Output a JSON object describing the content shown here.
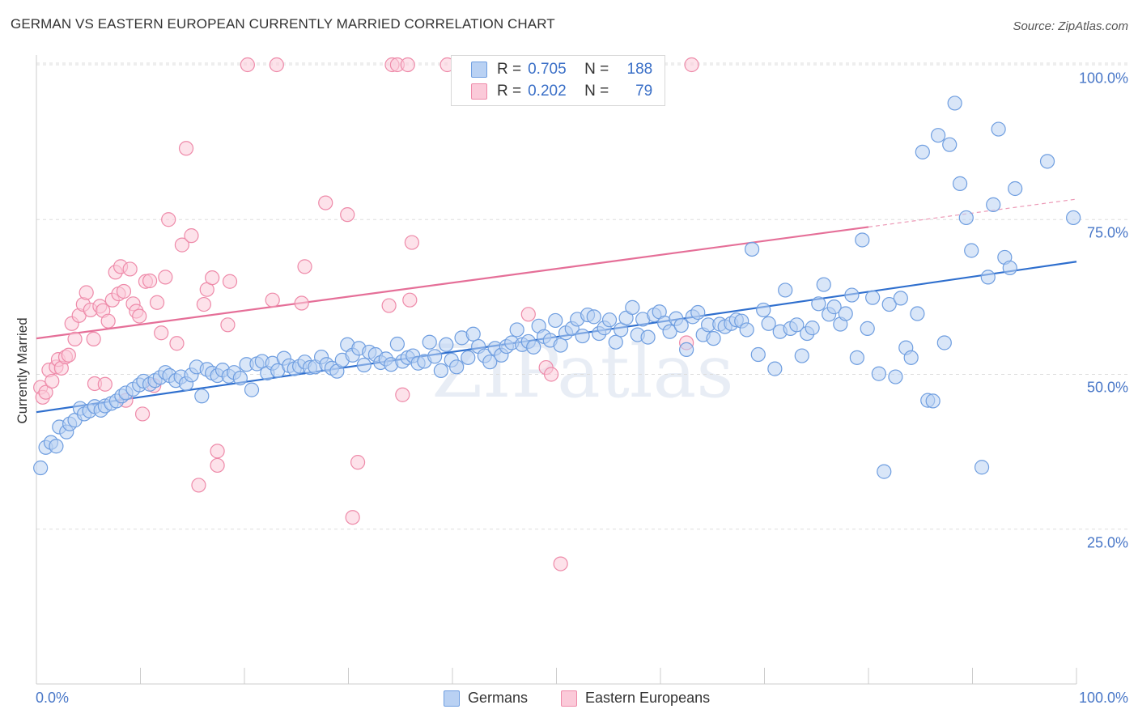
{
  "header": {
    "title": "GERMAN VS EASTERN EUROPEAN CURRENTLY MARRIED CORRELATION CHART",
    "source": "Source: ZipAtlas.com"
  },
  "watermark": "ZIPatlas",
  "stats": {
    "germans": {
      "r_label": "R =",
      "r_value": "0.705",
      "n_label": "N =",
      "n_value": "188"
    },
    "eastern": {
      "r_label": "R =",
      "r_value": "0.202",
      "n_label": "N =",
      "n_value": "79"
    }
  },
  "legend": {
    "germans": "Germans",
    "eastern": "Eastern Europeans"
  },
  "colors": {
    "blue": "#6f9ee0",
    "blue_fill": "#b9d1f3",
    "blue_line": "#2f6fce",
    "pink": "#ee8aa9",
    "pink_fill": "#fbcad9",
    "pink_line": "#e56f98",
    "tick_text": "#4a78c8"
  },
  "chart_data": {
    "type": "scatter",
    "xlabel": "",
    "ylabel": "Currently Married",
    "xlim": [
      0,
      100
    ],
    "ylim": [
      0,
      104
    ],
    "x_tick_labels": [
      "0.0%",
      "100.0%"
    ],
    "y_ticks": [
      25,
      50,
      75,
      100
    ],
    "y_tick_labels": [
      "25.0%",
      "50.0%",
      "75.0%",
      "100.0%"
    ],
    "grid": true,
    "legend_position": "bottom-center",
    "series": [
      {
        "name": "Germans",
        "trend": {
          "x": [
            0,
            100
          ],
          "y": [
            43.9,
            68.2
          ]
        },
        "points": [
          [
            0.4,
            34.9
          ],
          [
            0.9,
            38.2
          ],
          [
            1.4,
            39.0
          ],
          [
            1.9,
            38.4
          ],
          [
            2.2,
            41.5
          ],
          [
            2.9,
            40.7
          ],
          [
            3.2,
            42.0
          ],
          [
            3.7,
            42.6
          ],
          [
            4.2,
            44.5
          ],
          [
            4.6,
            43.6
          ],
          [
            5.1,
            44.1
          ],
          [
            5.6,
            44.8
          ],
          [
            6.2,
            44.2
          ],
          [
            6.6,
            44.9
          ],
          [
            7.2,
            45.3
          ],
          [
            7.7,
            45.7
          ],
          [
            8.2,
            46.5
          ],
          [
            8.6,
            47.0
          ],
          [
            9.3,
            47.6
          ],
          [
            9.9,
            48.3
          ],
          [
            10.3,
            48.9
          ],
          [
            10.9,
            48.4
          ],
          [
            11.4,
            49.0
          ],
          [
            11.9,
            49.5
          ],
          [
            12.4,
            50.3
          ],
          [
            12.8,
            49.8
          ],
          [
            13.4,
            49.0
          ],
          [
            13.9,
            49.6
          ],
          [
            14.4,
            48.5
          ],
          [
            14.9,
            49.9
          ],
          [
            15.4,
            51.2
          ],
          [
            15.9,
            46.5
          ],
          [
            16.4,
            50.8
          ],
          [
            16.9,
            50.2
          ],
          [
            17.4,
            49.8
          ],
          [
            17.9,
            50.7
          ],
          [
            18.5,
            49.7
          ],
          [
            19.0,
            50.3
          ],
          [
            19.6,
            49.4
          ],
          [
            20.2,
            51.6
          ],
          [
            20.7,
            47.5
          ],
          [
            21.2,
            51.7
          ],
          [
            21.7,
            52.1
          ],
          [
            22.2,
            50.2
          ],
          [
            22.7,
            51.8
          ],
          [
            23.2,
            50.6
          ],
          [
            23.8,
            52.6
          ],
          [
            24.3,
            51.4
          ],
          [
            24.8,
            50.9
          ],
          [
            25.3,
            51.3
          ],
          [
            25.8,
            52.0
          ],
          [
            26.3,
            51.1
          ],
          [
            26.8,
            51.2
          ],
          [
            27.4,
            52.8
          ],
          [
            27.9,
            51.6
          ],
          [
            28.4,
            51.0
          ],
          [
            28.9,
            50.5
          ],
          [
            29.4,
            52.3
          ],
          [
            29.9,
            54.8
          ],
          [
            30.4,
            53.1
          ],
          [
            31.0,
            54.2
          ],
          [
            31.5,
            51.5
          ],
          [
            32.0,
            53.6
          ],
          [
            32.6,
            53.2
          ],
          [
            33.1,
            51.9
          ],
          [
            33.6,
            52.5
          ],
          [
            34.1,
            51.6
          ],
          [
            34.7,
            54.9
          ],
          [
            35.2,
            52.1
          ],
          [
            35.7,
            52.7
          ],
          [
            36.2,
            53.0
          ],
          [
            36.7,
            51.8
          ],
          [
            37.3,
            52.1
          ],
          [
            37.8,
            55.2
          ],
          [
            38.3,
            52.9
          ],
          [
            38.9,
            50.6
          ],
          [
            39.4,
            54.8
          ],
          [
            39.9,
            52.3
          ],
          [
            40.4,
            51.2
          ],
          [
            40.9,
            55.9
          ],
          [
            41.5,
            52.7
          ],
          [
            42.0,
            56.5
          ],
          [
            42.5,
            54.5
          ],
          [
            43.1,
            53.0
          ],
          [
            43.6,
            52.0
          ],
          [
            44.1,
            54.2
          ],
          [
            44.7,
            53.1
          ],
          [
            45.2,
            54.5
          ],
          [
            45.7,
            55.1
          ],
          [
            46.2,
            57.2
          ],
          [
            46.7,
            54.8
          ],
          [
            47.3,
            55.3
          ],
          [
            47.8,
            54.4
          ],
          [
            48.3,
            57.8
          ],
          [
            48.8,
            56.1
          ],
          [
            49.4,
            55.5
          ],
          [
            49.9,
            58.7
          ],
          [
            50.4,
            54.7
          ],
          [
            50.9,
            56.7
          ],
          [
            51.5,
            57.4
          ],
          [
            52.0,
            58.9
          ],
          [
            52.5,
            56.2
          ],
          [
            53.0,
            59.6
          ],
          [
            53.6,
            59.3
          ],
          [
            54.1,
            56.6
          ],
          [
            54.6,
            57.5
          ],
          [
            55.1,
            58.8
          ],
          [
            55.7,
            55.2
          ],
          [
            56.2,
            57.2
          ],
          [
            56.7,
            59.1
          ],
          [
            57.3,
            60.8
          ],
          [
            57.8,
            56.4
          ],
          [
            58.3,
            58.9
          ],
          [
            58.8,
            56.0
          ],
          [
            59.4,
            59.6
          ],
          [
            59.9,
            60.1
          ],
          [
            60.4,
            58.3
          ],
          [
            60.9,
            56.9
          ],
          [
            61.5,
            59.0
          ],
          [
            62.0,
            57.9
          ],
          [
            62.5,
            54.0
          ],
          [
            63.1,
            59.3
          ],
          [
            63.6,
            60.0
          ],
          [
            64.1,
            56.4
          ],
          [
            64.6,
            58.0
          ],
          [
            65.1,
            55.8
          ],
          [
            65.7,
            58.1
          ],
          [
            66.2,
            57.7
          ],
          [
            66.8,
            58.2
          ],
          [
            67.3,
            58.8
          ],
          [
            67.8,
            58.6
          ],
          [
            68.3,
            57.2
          ],
          [
            68.8,
            70.2
          ],
          [
            69.4,
            53.2
          ],
          [
            69.9,
            60.4
          ],
          [
            70.4,
            58.2
          ],
          [
            71.0,
            50.9
          ],
          [
            71.5,
            56.9
          ],
          [
            72.0,
            63.6
          ],
          [
            72.5,
            57.4
          ],
          [
            73.1,
            58.0
          ],
          [
            73.6,
            53.0
          ],
          [
            74.1,
            56.6
          ],
          [
            74.6,
            57.5
          ],
          [
            75.2,
            61.4
          ],
          [
            75.7,
            64.5
          ],
          [
            76.2,
            59.7
          ],
          [
            76.7,
            60.9
          ],
          [
            77.3,
            58.1
          ],
          [
            77.8,
            59.8
          ],
          [
            78.4,
            62.8
          ],
          [
            78.9,
            52.7
          ],
          [
            79.4,
            71.7
          ],
          [
            79.9,
            57.4
          ],
          [
            80.4,
            62.4
          ],
          [
            81.0,
            50.1
          ],
          [
            81.5,
            34.3
          ],
          [
            82.0,
            61.3
          ],
          [
            82.6,
            49.6
          ],
          [
            83.1,
            62.3
          ],
          [
            83.6,
            54.3
          ],
          [
            84.1,
            52.7
          ],
          [
            84.7,
            59.8
          ],
          [
            85.2,
            85.9
          ],
          [
            85.7,
            45.8
          ],
          [
            86.2,
            45.7
          ],
          [
            86.7,
            88.6
          ],
          [
            87.3,
            55.1
          ],
          [
            87.8,
            87.1
          ],
          [
            88.3,
            93.8
          ],
          [
            88.8,
            80.8
          ],
          [
            89.4,
            75.3
          ],
          [
            89.9,
            70.0
          ],
          [
            90.9,
            35.0
          ],
          [
            91.5,
            65.7
          ],
          [
            92.0,
            77.4
          ],
          [
            92.5,
            89.6
          ],
          [
            93.1,
            68.9
          ],
          [
            93.6,
            67.2
          ],
          [
            94.1,
            80.0
          ],
          [
            97.2,
            84.4
          ],
          [
            99.7,
            75.3
          ]
        ]
      },
      {
        "name": "Eastern Europeans",
        "trend": {
          "x": [
            0,
            80
          ],
          "y": [
            55.8,
            73.8
          ]
        },
        "trend_dashed": {
          "x": [
            80,
            100
          ],
          "y": [
            73.8,
            78.3
          ]
        },
        "points": [
          [
            0.4,
            47.9
          ],
          [
            0.6,
            46.3
          ],
          [
            0.9,
            47.1
          ],
          [
            1.2,
            50.7
          ],
          [
            1.5,
            48.9
          ],
          [
            1.9,
            51.2
          ],
          [
            2.1,
            52.4
          ],
          [
            2.4,
            51.0
          ],
          [
            2.8,
            52.8
          ],
          [
            3.1,
            53.1
          ],
          [
            3.4,
            58.2
          ],
          [
            3.7,
            55.7
          ],
          [
            4.1,
            59.5
          ],
          [
            4.5,
            61.3
          ],
          [
            4.8,
            63.2
          ],
          [
            5.2,
            60.4
          ],
          [
            5.5,
            55.7
          ],
          [
            5.6,
            48.5
          ],
          [
            6.1,
            61.0
          ],
          [
            6.4,
            60.3
          ],
          [
            6.6,
            48.4
          ],
          [
            6.9,
            58.6
          ],
          [
            7.3,
            62.0
          ],
          [
            7.6,
            66.5
          ],
          [
            7.9,
            63.0
          ],
          [
            8.1,
            67.4
          ],
          [
            8.4,
            63.4
          ],
          [
            8.6,
            45.8
          ],
          [
            9.0,
            67.0
          ],
          [
            9.3,
            61.4
          ],
          [
            9.6,
            60.2
          ],
          [
            9.9,
            59.4
          ],
          [
            10.2,
            43.6
          ],
          [
            10.5,
            65.0
          ],
          [
            10.9,
            65.1
          ],
          [
            11.3,
            48.2
          ],
          [
            11.6,
            61.6
          ],
          [
            12.0,
            56.7
          ],
          [
            12.4,
            65.7
          ],
          [
            12.7,
            75.0
          ],
          [
            13.5,
            55.0
          ],
          [
            14.0,
            70.9
          ],
          [
            14.4,
            86.5
          ],
          [
            14.9,
            72.4
          ],
          [
            15.6,
            32.1
          ],
          [
            16.1,
            61.3
          ],
          [
            16.4,
            63.7
          ],
          [
            16.9,
            65.6
          ],
          [
            17.4,
            37.6
          ],
          [
            17.4,
            35.3
          ],
          [
            18.4,
            58.0
          ],
          [
            18.6,
            65.0
          ],
          [
            20.3,
            100.0
          ],
          [
            22.7,
            62.0
          ],
          [
            23.1,
            100.0
          ],
          [
            25.5,
            61.5
          ],
          [
            25.8,
            67.4
          ],
          [
            27.8,
            77.7
          ],
          [
            29.9,
            75.8
          ],
          [
            30.4,
            26.9
          ],
          [
            30.9,
            35.8
          ],
          [
            33.9,
            61.1
          ],
          [
            34.2,
            100.0
          ],
          [
            34.7,
            100.0
          ],
          [
            35.2,
            46.7
          ],
          [
            35.7,
            100.0
          ],
          [
            35.9,
            62.0
          ],
          [
            36.1,
            71.3
          ],
          [
            39.5,
            100.0
          ],
          [
            41.0,
            100.0
          ],
          [
            47.3,
            59.7
          ],
          [
            49.0,
            51.1
          ],
          [
            49.5,
            50.0
          ],
          [
            50.4,
            19.4
          ],
          [
            62.5,
            55.1
          ],
          [
            63.0,
            100.0
          ]
        ]
      }
    ]
  }
}
